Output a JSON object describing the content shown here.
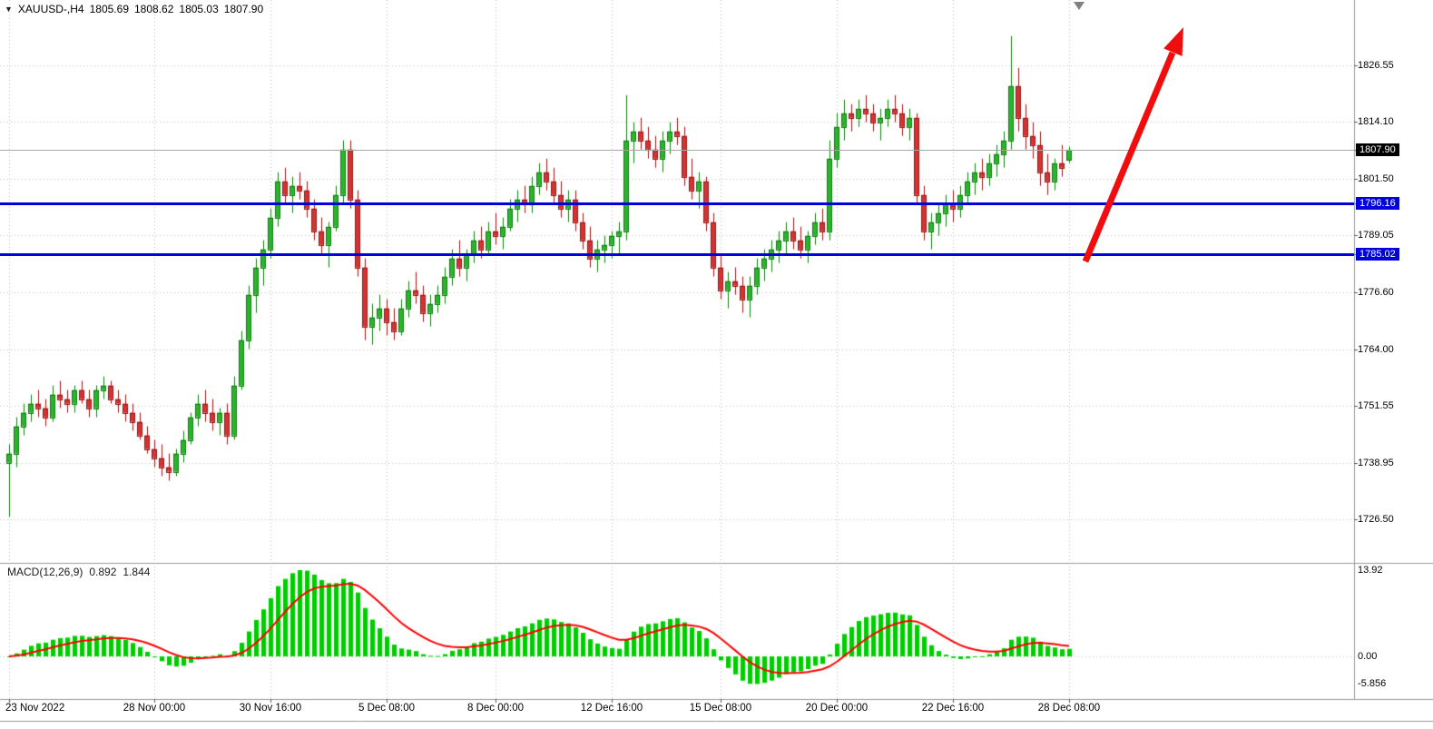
{
  "window": {
    "symbol_info": {
      "icon": "▼",
      "symbol": "XAUUSD-,H4",
      "open": "1805.69",
      "high": "1808.62",
      "low": "1805.03",
      "close": "1807.90"
    }
  },
  "chart_data": {
    "type": "candlestick",
    "symbol": "XAUUSD-",
    "timeframe": "H4",
    "colors": {
      "up": "#2db32d",
      "up_border": "#0f7d0f",
      "down": "#d23434",
      "down_border": "#9e1414",
      "macd_hist": "#00cc00",
      "macd_signal": "#ff0000",
      "hline": "#0000dd",
      "last_badge_bg": "#000000",
      "arrow": "#f10d0d",
      "grid": "#bdbdbd"
    },
    "candles": [
      [
        1739,
        1743,
        1727,
        1741
      ],
      [
        1741,
        1749,
        1738,
        1747
      ],
      [
        1747,
        1752,
        1745,
        1750
      ],
      [
        1750,
        1754,
        1748,
        1752
      ],
      [
        1752,
        1755,
        1749,
        1751
      ],
      [
        1751,
        1753,
        1747,
        1749
      ],
      [
        1749,
        1756,
        1748,
        1754
      ],
      [
        1754,
        1757,
        1751,
        1753
      ],
      [
        1753,
        1755,
        1750,
        1752
      ],
      [
        1752,
        1756,
        1750,
        1755
      ],
      [
        1755,
        1757,
        1752,
        1753
      ],
      [
        1753,
        1755,
        1749,
        1751
      ],
      [
        1751,
        1756,
        1749,
        1755
      ],
      [
        1755,
        1758,
        1753,
        1756
      ],
      [
        1756,
        1757,
        1752,
        1753
      ],
      [
        1753,
        1755,
        1750,
        1752
      ],
      [
        1752,
        1754,
        1748,
        1750
      ],
      [
        1750,
        1752,
        1746,
        1748
      ],
      [
        1748,
        1750,
        1744,
        1745
      ],
      [
        1745,
        1747,
        1741,
        1742
      ],
      [
        1742,
        1744,
        1738,
        1740
      ],
      [
        1740,
        1743,
        1736,
        1738
      ],
      [
        1738,
        1741,
        1735,
        1737
      ],
      [
        1737,
        1742,
        1736,
        1741
      ],
      [
        1741,
        1746,
        1739,
        1744
      ],
      [
        1744,
        1750,
        1743,
        1749
      ],
      [
        1749,
        1754,
        1747,
        1752
      ],
      [
        1752,
        1755,
        1748,
        1750
      ],
      [
        1750,
        1753,
        1746,
        1748
      ],
      [
        1748,
        1751,
        1745,
        1750
      ],
      [
        1750,
        1752,
        1743,
        1745
      ],
      [
        1745,
        1758,
        1744,
        1756
      ],
      [
        1756,
        1768,
        1755,
        1766
      ],
      [
        1766,
        1778,
        1764,
        1776
      ],
      [
        1776,
        1784,
        1772,
        1782
      ],
      [
        1782,
        1788,
        1778,
        1786
      ],
      [
        1786,
        1795,
        1784,
        1793
      ],
      [
        1793,
        1803,
        1791,
        1801
      ],
      [
        1801,
        1804,
        1796,
        1798
      ],
      [
        1798,
        1802,
        1794,
        1800
      ],
      [
        1800,
        1803,
        1797,
        1799
      ],
      [
        1799,
        1801,
        1793,
        1795
      ],
      [
        1795,
        1797,
        1788,
        1790
      ],
      [
        1790,
        1793,
        1785,
        1787
      ],
      [
        1787,
        1792,
        1782,
        1791
      ],
      [
        1791,
        1800,
        1790,
        1798
      ],
      [
        1798,
        1810,
        1796,
        1808
      ],
      [
        1808,
        1810,
        1795,
        1797
      ],
      [
        1797,
        1799,
        1780,
        1782
      ],
      [
        1782,
        1784,
        1766,
        1769
      ],
      [
        1769,
        1774,
        1765,
        1771
      ],
      [
        1771,
        1776,
        1768,
        1773
      ],
      [
        1773,
        1775,
        1767,
        1770
      ],
      [
        1770,
        1773,
        1766,
        1768
      ],
      [
        1768,
        1775,
        1767,
        1773
      ],
      [
        1773,
        1779,
        1771,
        1777
      ],
      [
        1777,
        1781,
        1774,
        1776
      ],
      [
        1776,
        1778,
        1770,
        1772
      ],
      [
        1772,
        1776,
        1769,
        1774
      ],
      [
        1774,
        1778,
        1772,
        1776
      ],
      [
        1776,
        1782,
        1774,
        1780
      ],
      [
        1780,
        1786,
        1778,
        1784
      ],
      [
        1784,
        1788,
        1780,
        1782
      ],
      [
        1782,
        1786,
        1779,
        1785
      ],
      [
        1785,
        1790,
        1783,
        1788
      ],
      [
        1788,
        1791,
        1784,
        1786
      ],
      [
        1786,
        1792,
        1785,
        1790
      ],
      [
        1790,
        1794,
        1787,
        1789
      ],
      [
        1789,
        1793,
        1786,
        1791
      ],
      [
        1791,
        1797,
        1790,
        1795
      ],
      [
        1795,
        1799,
        1792,
        1797
      ],
      [
        1797,
        1800,
        1794,
        1796
      ],
      [
        1796,
        1802,
        1794,
        1800
      ],
      [
        1800,
        1805,
        1798,
        1803
      ],
      [
        1803,
        1806,
        1799,
        1801
      ],
      [
        1801,
        1804,
        1796,
        1798
      ],
      [
        1798,
        1801,
        1793,
        1795
      ],
      [
        1795,
        1799,
        1792,
        1797
      ],
      [
        1797,
        1799,
        1790,
        1792
      ],
      [
        1792,
        1794,
        1786,
        1788
      ],
      [
        1788,
        1791,
        1782,
        1784
      ],
      [
        1784,
        1788,
        1781,
        1786
      ],
      [
        1786,
        1789,
        1783,
        1787
      ],
      [
        1787,
        1790,
        1784,
        1789
      ],
      [
        1789,
        1792,
        1785,
        1790
      ],
      [
        1790,
        1820,
        1788,
        1810
      ],
      [
        1810,
        1814,
        1805,
        1812
      ],
      [
        1812,
        1815,
        1808,
        1810
      ],
      [
        1810,
        1813,
        1806,
        1808
      ],
      [
        1808,
        1811,
        1804,
        1806
      ],
      [
        1806,
        1812,
        1803,
        1810
      ],
      [
        1810,
        1814,
        1807,
        1812
      ],
      [
        1812,
        1815,
        1809,
        1811
      ],
      [
        1811,
        1813,
        1800,
        1802
      ],
      [
        1802,
        1806,
        1797,
        1799
      ],
      [
        1799,
        1803,
        1795,
        1801
      ],
      [
        1801,
        1802,
        1790,
        1792
      ],
      [
        1792,
        1794,
        1780,
        1782
      ],
      [
        1782,
        1785,
        1775,
        1777
      ],
      [
        1777,
        1781,
        1773,
        1779
      ],
      [
        1779,
        1782,
        1776,
        1778
      ],
      [
        1778,
        1780,
        1772,
        1775
      ],
      [
        1775,
        1780,
        1771,
        1778
      ],
      [
        1778,
        1784,
        1776,
        1782
      ],
      [
        1782,
        1786,
        1779,
        1784
      ],
      [
        1784,
        1788,
        1781,
        1786
      ],
      [
        1786,
        1790,
        1783,
        1788
      ],
      [
        1788,
        1792,
        1785,
        1790
      ],
      [
        1790,
        1793,
        1786,
        1788
      ],
      [
        1788,
        1791,
        1784,
        1786
      ],
      [
        1786,
        1790,
        1783,
        1789
      ],
      [
        1789,
        1794,
        1787,
        1792
      ],
      [
        1792,
        1795,
        1788,
        1790
      ],
      [
        1790,
        1810,
        1788,
        1806
      ],
      [
        1806,
        1816,
        1804,
        1813
      ],
      [
        1813,
        1819,
        1810,
        1816
      ],
      [
        1816,
        1818,
        1812,
        1815
      ],
      [
        1815,
        1819,
        1813,
        1817
      ],
      [
        1817,
        1820,
        1814,
        1816
      ],
      [
        1816,
        1818,
        1812,
        1814
      ],
      [
        1814,
        1817,
        1810,
        1815
      ],
      [
        1815,
        1819,
        1813,
        1817
      ],
      [
        1817,
        1820,
        1814,
        1816
      ],
      [
        1816,
        1818,
        1811,
        1813
      ],
      [
        1813,
        1817,
        1810,
        1815
      ],
      [
        1815,
        1816,
        1796,
        1798
      ],
      [
        1798,
        1800,
        1788,
        1790
      ],
      [
        1790,
        1794,
        1786,
        1792
      ],
      [
        1792,
        1796,
        1789,
        1794
      ],
      [
        1794,
        1798,
        1791,
        1796
      ],
      [
        1796,
        1799,
        1792,
        1795
      ],
      [
        1795,
        1800,
        1793,
        1798
      ],
      [
        1798,
        1803,
        1796,
        1801
      ],
      [
        1801,
        1805,
        1798,
        1803
      ],
      [
        1803,
        1806,
        1799,
        1802
      ],
      [
        1802,
        1807,
        1800,
        1805
      ],
      [
        1805,
        1809,
        1802,
        1807
      ],
      [
        1807,
        1812,
        1804,
        1810
      ],
      [
        1810,
        1833,
        1808,
        1822
      ],
      [
        1822,
        1826,
        1812,
        1815
      ],
      [
        1815,
        1818,
        1808,
        1811
      ],
      [
        1811,
        1814,
        1806,
        1809
      ],
      [
        1809,
        1812,
        1800,
        1803
      ],
      [
        1803,
        1807,
        1798,
        1801
      ],
      [
        1801,
        1806,
        1799,
        1805
      ],
      [
        1805,
        1809,
        1802,
        1804
      ],
      [
        1805.69,
        1808.62,
        1805.03,
        1807.9
      ]
    ],
    "x_ticks": [
      {
        "bar": 0,
        "label": "23 Nov 2022"
      },
      {
        "bar": 20,
        "label": "28 Nov 00:00"
      },
      {
        "bar": 36,
        "label": "30 Nov 16:00"
      },
      {
        "bar": 52,
        "label": "5 Dec 08:00"
      },
      {
        "bar": 67,
        "label": "8 Dec 00:00"
      },
      {
        "bar": 83,
        "label": "12 Dec 16:00"
      },
      {
        "bar": 98,
        "label": "15 Dec 08:00"
      },
      {
        "bar": 114,
        "label": "20 Dec 00:00"
      },
      {
        "bar": 130,
        "label": "22 Dec 16:00"
      },
      {
        "bar": 146,
        "label": "28 Dec 08:00"
      }
    ],
    "y_axis": [
      {
        "price": 1826.55,
        "text": "1826.55",
        "kind": "grid"
      },
      {
        "price": 1814.1,
        "text": "1814.10",
        "kind": "grid"
      },
      {
        "price": 1807.9,
        "text": "1807.90",
        "kind": "last"
      },
      {
        "price": 1801.5,
        "text": "1801.50",
        "kind": "grid"
      },
      {
        "price": 1796.16,
        "text": "1796.16",
        "kind": "hline"
      },
      {
        "price": 1789.05,
        "text": "1789.05",
        "kind": "grid"
      },
      {
        "price": 1785.02,
        "text": "1785.02",
        "kind": "hline"
      },
      {
        "price": 1776.6,
        "text": "1776.60",
        "kind": "grid"
      },
      {
        "price": 1764.0,
        "text": "1764.00",
        "kind": "grid"
      },
      {
        "price": 1751.55,
        "text": "1751.55",
        "kind": "grid"
      },
      {
        "price": 1738.95,
        "text": "1738.95",
        "kind": "grid"
      },
      {
        "price": 1726.5,
        "text": "1726.50",
        "kind": "grid"
      }
    ],
    "hlines": [
      {
        "price": 1796.16,
        "label": "1796.16"
      },
      {
        "price": 1785.02,
        "label": "1785.02"
      }
    ],
    "last_price": 1807.9,
    "macd": {
      "label": "MACD(12,26,9)",
      "value_main": "0.892",
      "value_signal": "1.844",
      "axis_labels": [
        "13.92",
        "0.00",
        "-5.856"
      ]
    },
    "annotations": [
      {
        "type": "arrow",
        "direction": "up-right",
        "color": "#f10d0d"
      }
    ]
  }
}
